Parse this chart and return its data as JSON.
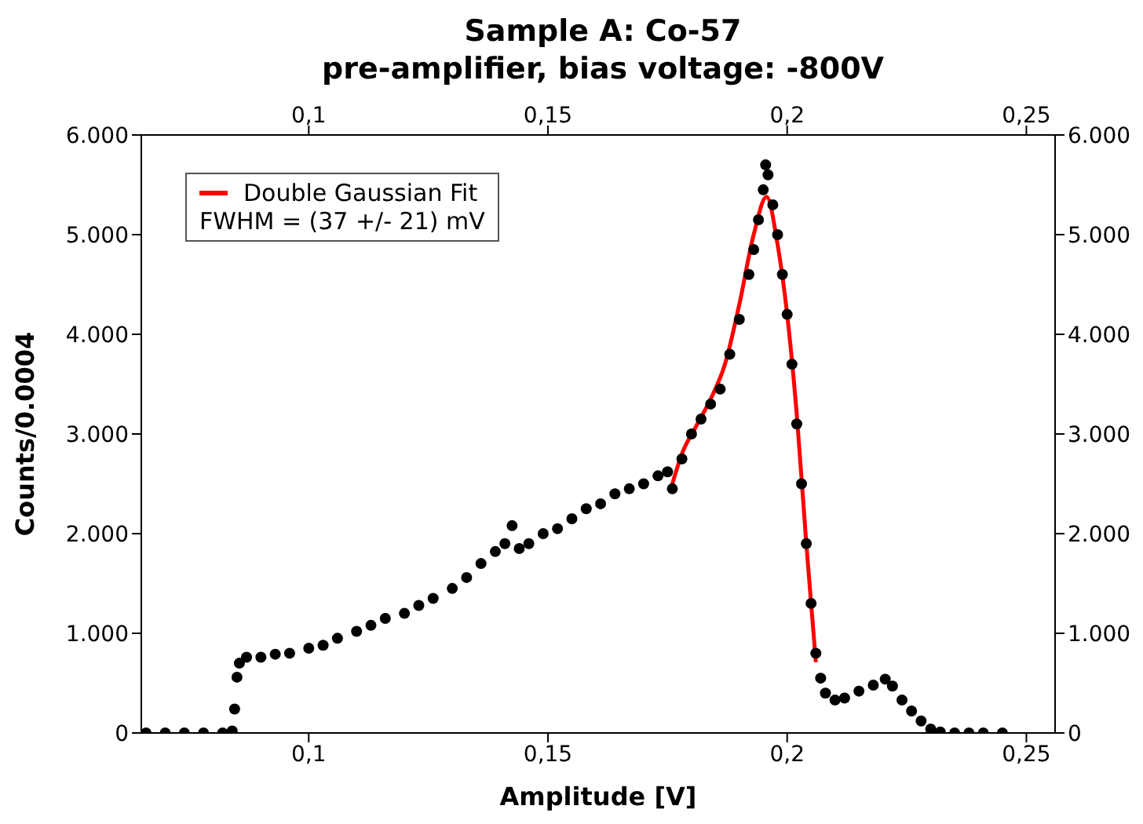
{
  "chart_data": {
    "type": "scatter",
    "title": "Sample A: Co-57",
    "subtitle": "pre-amplifier, bias voltage: -800V",
    "xlabel": "Amplitude [V]",
    "ylabel": "Counts/0.0004",
    "annotations": [
      "FWHM = (37 +/- 21) mV"
    ],
    "xlim": [
      0.065,
      0.256
    ],
    "xticks": [
      {
        "value": 0.1,
        "label": "0,1"
      },
      {
        "value": 0.15,
        "label": "0,15"
      },
      {
        "value": 0.2,
        "label": "0,2"
      },
      {
        "value": 0.25,
        "label": "0,25"
      }
    ],
    "x2lim": [
      0.065,
      0.256
    ],
    "x2ticks": [
      {
        "value": 0.1,
        "label": "0,1"
      },
      {
        "value": 0.15,
        "label": "0,15"
      },
      {
        "value": 0.2,
        "label": "0,2"
      },
      {
        "value": 0.25,
        "label": "0,25"
      }
    ],
    "ylim": [
      0,
      6000
    ],
    "yticks": [
      0,
      {
        "value": 1000,
        "label": "1.000"
      },
      {
        "value": 2000,
        "label": "2.000"
      },
      {
        "value": 3000,
        "label": "3.000"
      },
      {
        "value": 4000,
        "label": "4.000"
      },
      {
        "value": 5000,
        "label": "5.000"
      },
      {
        "value": 6000,
        "label": "6.000"
      }
    ],
    "y2lim": [
      0,
      6000
    ],
    "y2ticks": [
      0,
      {
        "value": 1000,
        "label": "1.000"
      },
      {
        "value": 2000,
        "label": "2.000"
      },
      {
        "value": 3000,
        "label": "3.000"
      },
      {
        "value": 4000,
        "label": "4.000"
      },
      {
        "value": 5000,
        "label": "5.000"
      },
      {
        "value": 6000,
        "label": "6.000"
      }
    ],
    "legend": "top left",
    "series": [
      {
        "color": "#000000",
        "marker": "circle",
        "x": [
          0.066,
          0.07,
          0.074,
          0.078,
          0.082,
          0.084,
          0.0845,
          0.085,
          0.0855,
          0.087,
          0.09,
          0.093,
          0.096,
          0.1,
          0.103,
          0.106,
          0.11,
          0.113,
          0.116,
          0.12,
          0.123,
          0.126,
          0.13,
          0.133,
          0.136,
          0.139,
          0.141,
          0.1425,
          0.144,
          0.146,
          0.149,
          0.152,
          0.155,
          0.158,
          0.161,
          0.164,
          0.167,
          0.17,
          0.173,
          0.175,
          0.176,
          0.178,
          0.18,
          0.182,
          0.184,
          0.186,
          0.188,
          0.19,
          0.192,
          0.193,
          0.194,
          0.195,
          0.1955,
          0.196,
          0.197,
          0.198,
          0.199,
          0.2,
          0.201,
          0.202,
          0.203,
          0.204,
          0.205,
          0.206,
          0.207,
          0.208,
          0.21,
          0.212,
          0.215,
          0.218,
          0.2205,
          0.222,
          0.224,
          0.226,
          0.228,
          0.23,
          0.232,
          0.235,
          0.238,
          0.241,
          0.245
        ],
        "values": [
          0,
          0,
          0,
          0,
          0,
          20,
          240,
          560,
          700,
          760,
          760,
          790,
          800,
          850,
          880,
          950,
          1020,
          1080,
          1150,
          1200,
          1280,
          1350,
          1450,
          1560,
          1700,
          1820,
          1900,
          2080,
          1850,
          1900,
          2000,
          2050,
          2150,
          2250,
          2300,
          2400,
          2450,
          2500,
          2580,
          2620,
          2450,
          2750,
          3000,
          3150,
          3300,
          3450,
          3800,
          4150,
          4600,
          4850,
          5150,
          5450,
          5700,
          5600,
          5300,
          5000,
          4600,
          4200,
          3700,
          3100,
          2500,
          1900,
          1300,
          800,
          550,
          400,
          330,
          350,
          420,
          480,
          540,
          470,
          330,
          220,
          120,
          40,
          10,
          0,
          0,
          0,
          0
        ]
      },
      {
        "type": "line",
        "marker": "none",
        "name": "Double Gaussian Fit",
        "color": "#ff0000",
        "x": [
          0.1757,
          0.178,
          0.181,
          0.184,
          0.187,
          0.19,
          0.193,
          0.1957,
          0.198,
          0.2,
          0.202,
          0.204,
          0.206
        ],
        "values": [
          2450,
          2800,
          3080,
          3350,
          3700,
          4300,
          5000,
          5380,
          4900,
          4200,
          3200,
          1900,
          710
        ]
      }
    ]
  }
}
